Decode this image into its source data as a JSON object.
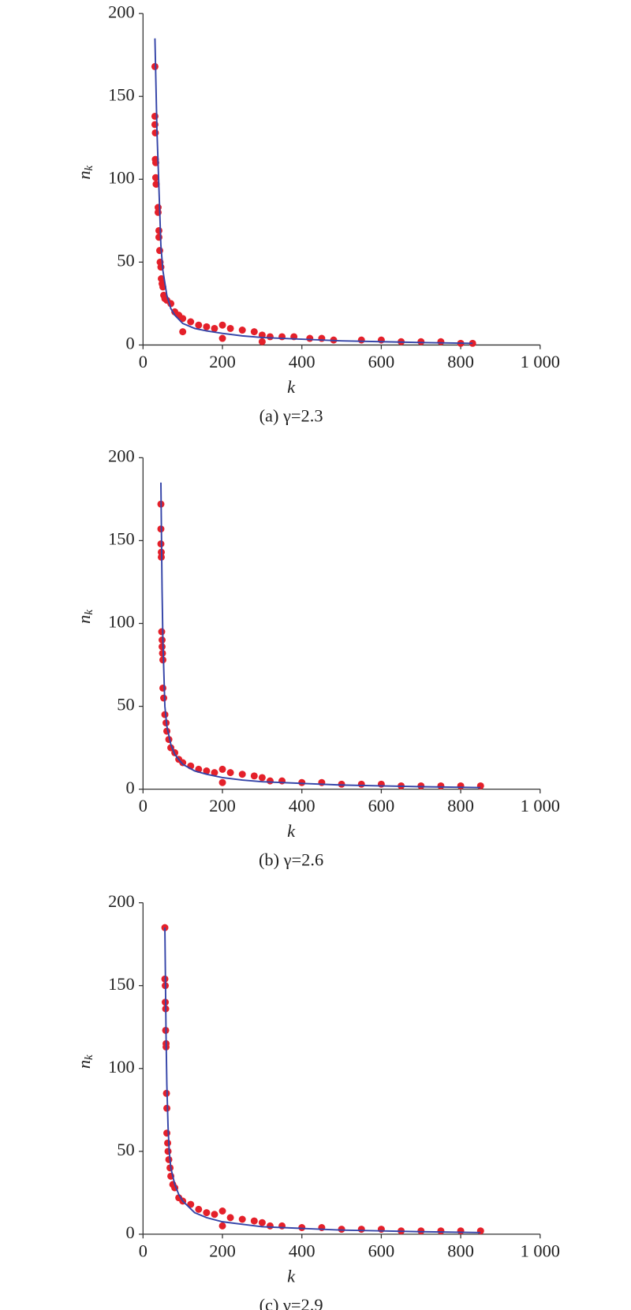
{
  "chart_data": [
    {
      "type": "scatter",
      "caption": "(a) γ=2.3",
      "xlabel": "k",
      "ylabel": "n",
      "ylabel_sub": "k",
      "xlim": [
        0,
        1000
      ],
      "ylim": [
        0,
        200
      ],
      "xticks": [
        0,
        200,
        400,
        600,
        800,
        {
          "value": 1000,
          "label": "1 000"
        }
      ],
      "yticks": [
        0,
        50,
        100,
        150,
        200
      ],
      "series": [
        {
          "mode": "markers",
          "color": "#e4202a",
          "x": [
            30,
            30,
            30,
            31,
            31,
            32,
            32,
            33,
            38,
            38,
            40,
            40,
            42,
            43,
            45,
            46,
            48,
            50,
            52,
            55,
            60,
            70,
            80,
            90,
            100,
            100,
            120,
            140,
            160,
            180,
            200,
            200,
            220,
            250,
            280,
            300,
            300,
            320,
            350,
            380,
            420,
            450,
            480,
            550,
            600,
            650,
            700,
            750,
            800,
            830
          ],
          "values": [
            168,
            138,
            133,
            128,
            112,
            110,
            101,
            97,
            83,
            80,
            69,
            65,
            57,
            50,
            47,
            40,
            37,
            35,
            30,
            28,
            27,
            25,
            20,
            18,
            16,
            8,
            14,
            12,
            11,
            10,
            12,
            4,
            10,
            9,
            8,
            6,
            2,
            5,
            5,
            5,
            4,
            4,
            3,
            3,
            3,
            2,
            2,
            2,
            1,
            1
          ]
        },
        {
          "mode": "line",
          "color": "#3444a8",
          "x": [
            30,
            35,
            40,
            45,
            50,
            60,
            70,
            80,
            100,
            130,
            160,
            200,
            250,
            300,
            400,
            500,
            600,
            700,
            830
          ],
          "values": [
            185,
            130,
            95,
            60,
            45,
            30,
            22,
            18,
            13,
            10,
            8.5,
            7,
            5.5,
            4.5,
            3.5,
            2.5,
            2,
            1.5,
            1
          ]
        }
      ]
    },
    {
      "type": "scatter",
      "caption": "(b) γ=2.6",
      "xlabel": "k",
      "ylabel": "n",
      "ylabel_sub": "k",
      "xlim": [
        0,
        1000
      ],
      "ylim": [
        0,
        200
      ],
      "xticks": [
        0,
        200,
        400,
        600,
        800,
        {
          "value": 1000,
          "label": "1 000"
        }
      ],
      "yticks": [
        0,
        50,
        100,
        150,
        200
      ],
      "series": [
        {
          "mode": "markers",
          "color": "#e4202a",
          "x": [
            45,
            45,
            45,
            46,
            46,
            47,
            48,
            48,
            49,
            50,
            50,
            52,
            55,
            58,
            60,
            65,
            70,
            80,
            90,
            100,
            120,
            140,
            160,
            180,
            200,
            200,
            220,
            250,
            280,
            300,
            320,
            350,
            400,
            450,
            500,
            550,
            600,
            650,
            700,
            750,
            800,
            850
          ],
          "values": [
            172,
            157,
            148,
            143,
            140,
            95,
            90,
            86,
            82,
            78,
            61,
            55,
            45,
            40,
            35,
            30,
            25,
            22,
            18,
            16,
            14,
            12,
            11,
            10,
            12,
            4,
            10,
            9,
            8,
            7,
            5,
            5,
            4,
            4,
            3,
            3,
            3,
            2,
            2,
            2,
            2,
            2
          ]
        },
        {
          "mode": "line",
          "color": "#3444a8",
          "x": [
            45,
            48,
            50,
            55,
            60,
            70,
            80,
            100,
            130,
            160,
            200,
            250,
            300,
            400,
            500,
            600,
            700,
            850
          ],
          "values": [
            185,
            120,
            90,
            50,
            38,
            27,
            21,
            15,
            11,
            9,
            7,
            5.5,
            4.5,
            3.5,
            2.5,
            2,
            1.5,
            1
          ]
        }
      ]
    },
    {
      "type": "scatter",
      "caption": "(c) γ=2.9",
      "xlabel": "k",
      "ylabel": "n",
      "ylabel_sub": "k",
      "xlim": [
        0,
        1000
      ],
      "ylim": [
        0,
        200
      ],
      "xticks": [
        0,
        200,
        400,
        600,
        800,
        {
          "value": 1000,
          "label": "1 000"
        }
      ],
      "yticks": [
        0,
        50,
        100,
        150,
        200
      ],
      "series": [
        {
          "mode": "markers",
          "color": "#e4202a",
          "x": [
            55,
            55,
            56,
            56,
            57,
            57,
            58,
            58,
            59,
            60,
            60,
            62,
            63,
            65,
            68,
            70,
            75,
            80,
            90,
            100,
            120,
            140,
            160,
            180,
            200,
            200,
            220,
            250,
            280,
            300,
            320,
            350,
            400,
            450,
            500,
            550,
            600,
            650,
            700,
            750,
            800,
            850
          ],
          "values": [
            185,
            154,
            150,
            140,
            136,
            123,
            115,
            113,
            85,
            76,
            61,
            55,
            50,
            45,
            40,
            35,
            30,
            28,
            22,
            20,
            18,
            15,
            13,
            12,
            14,
            5,
            10,
            9,
            8,
            7,
            5,
            5,
            4,
            4,
            3,
            3,
            3,
            2,
            2,
            2,
            2,
            2
          ]
        },
        {
          "mode": "line",
          "color": "#3444a8",
          "x": [
            55,
            58,
            60,
            63,
            66,
            70,
            80,
            90,
            100,
            130,
            160,
            200,
            250,
            300,
            400,
            500,
            600,
            700,
            850
          ],
          "values": [
            185,
            120,
            90,
            65,
            50,
            40,
            30,
            24,
            20,
            13,
            10,
            7.5,
            6,
            4.5,
            3.5,
            2.5,
            2,
            1.5,
            1
          ]
        }
      ]
    }
  ]
}
